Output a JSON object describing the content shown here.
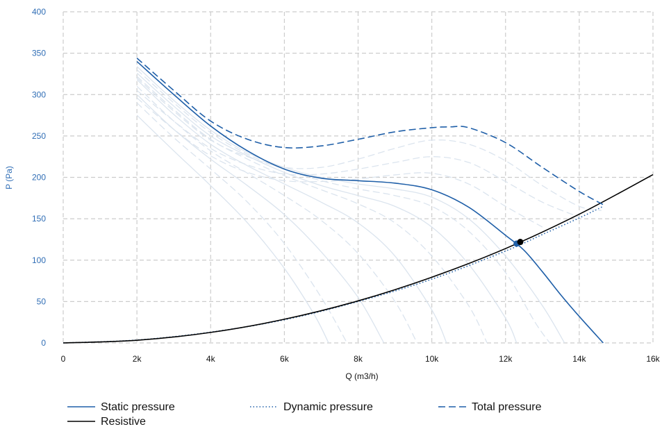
{
  "chart_data": {
    "type": "line",
    "title": "",
    "xlabel": "Q (m3/h)",
    "ylabel": "P (Pa)",
    "xlim": [
      0,
      16000
    ],
    "ylim": [
      0,
      400
    ],
    "x_ticks": [
      0,
      2000,
      4000,
      6000,
      8000,
      10000,
      12000,
      14000,
      16000
    ],
    "x_tick_labels": [
      "0",
      "2k",
      "4k",
      "6k",
      "8k",
      "10k",
      "12k",
      "14k",
      "16k"
    ],
    "y_ticks": [
      0,
      50,
      100,
      150,
      200,
      250,
      300,
      350,
      400
    ],
    "y_tick_labels": [
      "0",
      "50",
      "100",
      "150",
      "200",
      "250",
      "300",
      "350",
      "400"
    ],
    "grid": true,
    "legend_position": "bottom-left",
    "colors": {
      "primary": "#1f5fa8",
      "resistive": "#000000",
      "faded": "#dbe4ee",
      "grid": "#cccccc",
      "ylabel": "#2f6db5"
    },
    "series": [
      {
        "name": "Static pressure",
        "style": "solid",
        "x": [
          2000,
          3000,
          4000,
          5000,
          6000,
          7000,
          8000,
          9000,
          10000,
          11000,
          12000,
          12500,
          13000,
          13500,
          14000,
          14650
        ],
        "y": [
          340,
          300,
          262,
          232,
          210,
          199,
          196,
          193,
          185,
          164,
          130,
          112,
          86,
          58,
          32,
          0
        ]
      },
      {
        "name": "Dynamic pressure",
        "style": "dotted",
        "x": [
          0,
          2000,
          4000,
          6000,
          8000,
          10000,
          12000,
          13000,
          14000,
          14650
        ],
        "y": [
          0,
          3.5,
          13,
          28,
          50,
          77,
          111,
          131,
          151,
          165
        ]
      },
      {
        "name": "Total pressure",
        "style": "dashed",
        "x": [
          2000,
          3000,
          4000,
          5000,
          6000,
          7000,
          8000,
          9000,
          10000,
          10500,
          11000,
          12000,
          13000,
          14000,
          14650
        ],
        "y": [
          344,
          305,
          268,
          246,
          236,
          238,
          246,
          255,
          260,
          261,
          260,
          242,
          212,
          183,
          167
        ]
      },
      {
        "name": "Resistive",
        "style": "solid",
        "x": [
          0,
          2000,
          4000,
          6000,
          8000,
          10000,
          12000,
          14000,
          16000
        ],
        "y": [
          0,
          3.2,
          12.7,
          28.6,
          50.8,
          79.4,
          114,
          155.5,
          203.3
        ]
      }
    ],
    "operating_points": [
      {
        "series": "Static pressure",
        "x": 12300,
        "y": 120
      },
      {
        "series": "Resistive",
        "x": 12400,
        "y": 122
      }
    ],
    "background_curves": [
      {
        "style": "solid",
        "x": [
          2000,
          3000,
          4000,
          5000,
          6000,
          6800,
          7200
        ],
        "y": [
          275,
          232,
          190,
          145,
          90,
          35,
          0
        ]
      },
      {
        "style": "dashed",
        "x": [
          2000,
          3000,
          4000,
          5000,
          6000,
          7000,
          7700
        ],
        "y": [
          290,
          248,
          210,
          170,
          120,
          55,
          0
        ]
      },
      {
        "style": "solid",
        "x": [
          2000,
          3000,
          4000,
          5000,
          6000,
          7000,
          8000,
          8700
        ],
        "y": [
          300,
          258,
          222,
          190,
          155,
          110,
          55,
          0
        ]
      },
      {
        "style": "dashed",
        "x": [
          2000,
          3000,
          4000,
          5000,
          6000,
          7000,
          8000,
          9000,
          9600
        ],
        "y": [
          310,
          268,
          232,
          205,
          178,
          148,
          108,
          50,
          0
        ]
      },
      {
        "style": "solid",
        "x": [
          2000,
          3000,
          4000,
          5000,
          6000,
          7000,
          8000,
          9000,
          10000,
          10400
        ],
        "y": [
          318,
          276,
          240,
          214,
          192,
          170,
          145,
          105,
          40,
          0
        ]
      },
      {
        "style": "dashed",
        "x": [
          2000,
          3000,
          4000,
          5000,
          6000,
          7000,
          8000,
          9000,
          10000,
          11000,
          11500
        ],
        "y": [
          322,
          282,
          246,
          222,
          202,
          185,
          168,
          145,
          105,
          45,
          0
        ]
      },
      {
        "style": "solid",
        "x": [
          2000,
          3000,
          4000,
          5000,
          6000,
          7000,
          8000,
          9000,
          10000,
          11000,
          12000,
          12300
        ],
        "y": [
          326,
          286,
          250,
          226,
          206,
          190,
          178,
          165,
          140,
          95,
          30,
          0
        ]
      },
      {
        "style": "dashed",
        "x": [
          2000,
          3000,
          4000,
          5000,
          6000,
          7000,
          8000,
          9000,
          10000,
          11000,
          12000,
          12800,
          13200
        ],
        "y": [
          330,
          290,
          254,
          228,
          210,
          196,
          186,
          178,
          165,
          135,
          85,
          25,
          0
        ]
      },
      {
        "style": "solid",
        "x": [
          2000,
          3000,
          4000,
          5000,
          6000,
          7000,
          8000,
          9000,
          10000,
          11000,
          12000,
          13000,
          13600
        ],
        "y": [
          334,
          293,
          257,
          230,
          212,
          200,
          192,
          186,
          176,
          150,
          105,
          45,
          0
        ]
      },
      {
        "style": "dashed",
        "x": [
          2000,
          3000,
          4000,
          5000,
          6000,
          7000,
          8000,
          9000,
          10000,
          11000,
          12000,
          13000,
          14000,
          14600
        ],
        "y": [
          320,
          280,
          245,
          225,
          212,
          212,
          222,
          235,
          245,
          240,
          220,
          190,
          165,
          160
        ]
      },
      {
        "style": "dashed",
        "x": [
          2000,
          3000,
          4000,
          5000,
          6000,
          7000,
          8000,
          9000,
          10000,
          11000,
          12000,
          13000,
          14000
        ],
        "y": [
          305,
          268,
          235,
          215,
          204,
          204,
          210,
          218,
          225,
          218,
          195,
          170,
          152
        ]
      },
      {
        "style": "dashed",
        "x": [
          2000,
          3000,
          4000,
          5000,
          6000,
          7000,
          8000,
          9000,
          10000,
          11000,
          12000,
          13000
        ],
        "y": [
          296,
          258,
          226,
          206,
          196,
          195,
          198,
          203,
          205,
          192,
          165,
          140
        ]
      }
    ]
  }
}
